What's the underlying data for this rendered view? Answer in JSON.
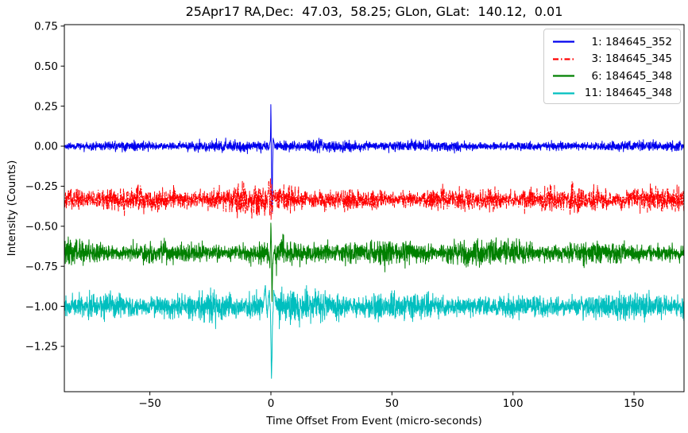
{
  "chart_data": {
    "type": "line",
    "title": "25Apr17 RA,Dec:  47.03,  58.25; GLon, GLat:  140.12,  0.01",
    "xlabel": "Time Offset From Event (micro-seconds)",
    "ylabel": "Intensity (Counts)",
    "xlim": [
      -85.33,
      170.67
    ],
    "ylim": [
      -1.533,
      0.759
    ],
    "x_ticks": [
      -50,
      0,
      50,
      100,
      150
    ],
    "x_tick_labels": [
      "−50",
      "0",
      "50",
      "100",
      "150"
    ],
    "y_ticks": [
      0.75,
      0.5,
      0.25,
      0.0,
      -0.25,
      -0.5,
      -0.75,
      -1.0,
      -1.25
    ],
    "y_tick_labels": [
      "0.75",
      "0.50",
      "0.25",
      "0.00",
      "−0.25",
      "−0.50",
      "−0.75",
      "−1.00",
      "−1.25"
    ],
    "grid": false,
    "legend_position": "upper right",
    "event_time": 0,
    "series": [
      {
        "label": " 1: 184645_352",
        "color": "#0000ee",
        "linestyle": "solid",
        "baseline": 0.0,
        "noise_sigma": 0.012,
        "noise_boost": {
          "range": [
            -5,
            5
          ],
          "factor": 1.15
        },
        "event_peak": 0.26,
        "event_trough": -0.41,
        "event_profile": [
          [
            -0.6,
            0.01
          ],
          [
            -0.2,
            0.04
          ],
          [
            0.0,
            0.26
          ],
          [
            0.15,
            0.0
          ],
          [
            0.3,
            -0.18
          ],
          [
            0.5,
            -0.41
          ],
          [
            0.7,
            -0.12
          ],
          [
            0.95,
            0.05
          ],
          [
            1.5,
            0.01
          ]
        ]
      },
      {
        "label": " 3: 184645_345",
        "color": "#ff0000",
        "linestyle": "dashdot",
        "baseline": -0.333,
        "noise_sigma": 0.026,
        "noise_boost": {
          "range": [
            -14,
            14
          ],
          "factor": 1.5
        },
        "event_peak": -0.2,
        "event_trough": -0.46,
        "event_profile": [
          [
            -1.5,
            -0.33
          ],
          [
            -0.8,
            -0.22
          ],
          [
            -0.45,
            -0.43
          ],
          [
            -0.15,
            -0.2
          ],
          [
            0.05,
            -0.46
          ],
          [
            0.3,
            -0.24
          ],
          [
            0.6,
            -0.42
          ],
          [
            1.0,
            -0.28
          ],
          [
            1.6,
            -0.33
          ]
        ]
      },
      {
        "label": " 6: 184645_348",
        "color": "#008000",
        "linestyle": "solid",
        "baseline": -0.665,
        "noise_sigma": 0.026,
        "noise_boost": {
          "range": [
            -6,
            6
          ],
          "factor": 1.25
        },
        "event_peak": -0.48,
        "event_trough": -0.97,
        "event_profile": [
          [
            -1.0,
            -0.66
          ],
          [
            -0.4,
            -0.76
          ],
          [
            0.0,
            -0.48
          ],
          [
            0.2,
            -0.62
          ],
          [
            0.45,
            -0.97
          ],
          [
            0.75,
            -0.73
          ],
          [
            1.3,
            -0.66
          ]
        ]
      },
      {
        "label": "11: 184645_348",
        "color": "#00bfbf",
        "linestyle": "solid",
        "baseline": -1.0,
        "noise_sigma": 0.03,
        "noise_boost": {
          "range": [
            -9,
            9
          ],
          "factor": 1.35
        },
        "event_peak": -0.87,
        "event_trough": -1.45,
        "event_profile": [
          [
            -3.2,
            -1.0
          ],
          [
            -2.3,
            -0.87
          ],
          [
            -1.5,
            -1.07
          ],
          [
            -0.7,
            -0.9
          ],
          [
            -0.2,
            -1.03
          ],
          [
            0.25,
            -1.45
          ],
          [
            0.65,
            -1.12
          ],
          [
            1.2,
            -0.9
          ],
          [
            2.2,
            -1.0
          ]
        ]
      }
    ]
  }
}
